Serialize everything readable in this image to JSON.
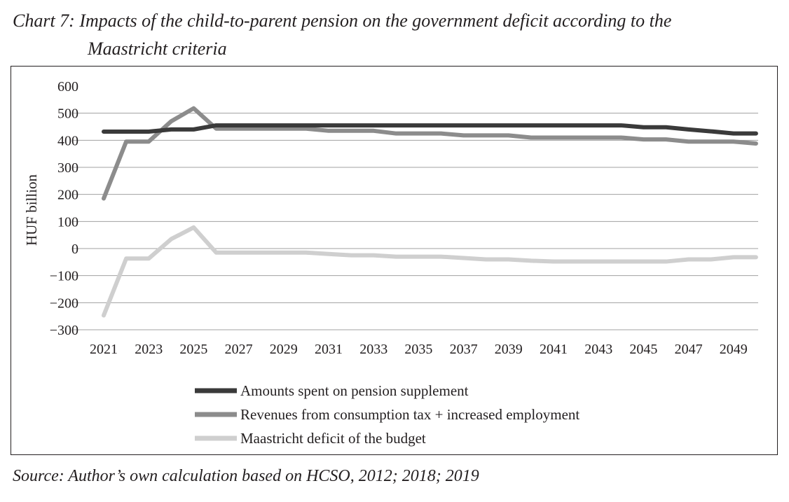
{
  "title_line1": "Chart 7: Impacts of the child-to-parent pension on the government deficit according to the",
  "title_line2": "Maastricht criteria",
  "source": "Source: Author’s own calculation based on HCSO, 2012; 2018; 2019",
  "chart_data": {
    "type": "line",
    "title": "Impacts of the child-to-parent pension on the government deficit according to the Maastricht criteria",
    "xlabel": "",
    "ylabel": "HUF billion",
    "ylim": [
      -300,
      600
    ],
    "yticks": [
      600,
      500,
      400,
      300,
      200,
      100,
      0,
      -100,
      -200,
      -300
    ],
    "ytick_labels": [
      "600",
      "500",
      "400",
      "300",
      "200",
      "100",
      "0",
      "−100",
      "−200",
      "−300"
    ],
    "x": [
      2021,
      2022,
      2023,
      2024,
      2025,
      2026,
      2027,
      2028,
      2029,
      2030,
      2031,
      2032,
      2033,
      2034,
      2035,
      2036,
      2037,
      2038,
      2039,
      2040,
      2041,
      2042,
      2043,
      2044,
      2045,
      2046,
      2047,
      2048,
      2049,
      2050
    ],
    "xtick_labels": [
      "2021",
      "2023",
      "2025",
      "2027",
      "2029",
      "2031",
      "2033",
      "2035",
      "2037",
      "2039",
      "2041",
      "2043",
      "2045",
      "2047",
      "2049"
    ],
    "grid": true,
    "legend_position": "bottom",
    "series": [
      {
        "name": "Amounts spent on pension supplement",
        "color": "#3a3a3a",
        "values": [
          432,
          432,
          432,
          440,
          440,
          455,
          455,
          455,
          455,
          455,
          455,
          455,
          455,
          455,
          455,
          455,
          455,
          455,
          455,
          455,
          455,
          455,
          455,
          455,
          448,
          448,
          440,
          433,
          425,
          425
        ]
      },
      {
        "name": "Revenues from consumption tax + increased employment",
        "color": "#8c8c8c",
        "values": [
          185,
          395,
          395,
          470,
          518,
          443,
          443,
          443,
          443,
          443,
          435,
          435,
          435,
          425,
          425,
          425,
          418,
          418,
          418,
          410,
          410,
          410,
          410,
          410,
          403,
          403,
          395,
          395,
          395,
          388
        ]
      },
      {
        "name": "Maastricht deficit of the budget",
        "color": "#cfcfcf",
        "values": [
          -247,
          -37,
          -37,
          35,
          78,
          -15,
          -15,
          -15,
          -15,
          -15,
          -20,
          -25,
          -25,
          -30,
          -30,
          -30,
          -35,
          -40,
          -40,
          -45,
          -48,
          -48,
          -48,
          -48,
          -48,
          -48,
          -40,
          -40,
          -32,
          -32
        ]
      }
    ]
  }
}
